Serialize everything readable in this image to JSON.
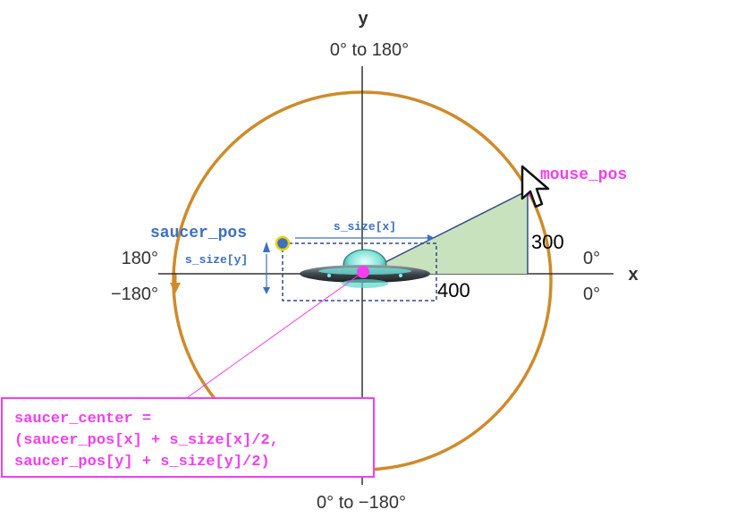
{
  "axes": {
    "y_label": "y",
    "x_label": "x",
    "top_range": "0° to 180°",
    "bottom_range": "0° to −180°",
    "left_upper": "180°",
    "left_lower": "−180°",
    "right_upper": "0°",
    "right_lower": "0°"
  },
  "labels": {
    "mouse_pos": "mouse_pos",
    "saucer_pos": "saucer_pos",
    "s_size_x": "s_size[x]",
    "s_size_y": "s_size[y]",
    "dx_value": "400",
    "dy_value": "300"
  },
  "callout": {
    "line1": "saucer_center =",
    "line2": "(saucer_pos[x] + s_size[x]/2,",
    "line3": "saucer_pos[y] + s_size[y]/2)"
  },
  "colors": {
    "circle": "#d08a2a",
    "triangle_fill": "#c8e2bd",
    "triangle_stroke": "#2f4a8c",
    "annotation_blue": "#3d6fc2",
    "magenta": "#f23ff0",
    "axis": "#333333"
  },
  "icons": {
    "ufo": "flying-saucer-icon",
    "cursor": "mouse-cursor-icon"
  }
}
